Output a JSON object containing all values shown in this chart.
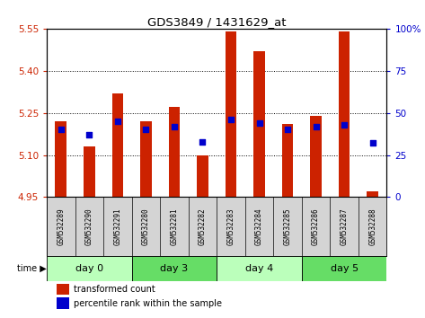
{
  "title": "GDS3849 / 1431629_at",
  "samples": [
    "GSM532289",
    "GSM532290",
    "GSM532291",
    "GSM532280",
    "GSM532281",
    "GSM532282",
    "GSM532283",
    "GSM532284",
    "GSM532285",
    "GSM532286",
    "GSM532287",
    "GSM532288"
  ],
  "red_values": [
    5.22,
    5.13,
    5.32,
    5.22,
    5.27,
    5.1,
    5.54,
    5.47,
    5.21,
    5.24,
    5.54,
    4.97
  ],
  "blue_values": [
    40,
    37,
    45,
    40,
    42,
    33,
    46,
    44,
    40,
    42,
    43,
    32
  ],
  "ylim_left": [
    4.95,
    5.55
  ],
  "ylim_right": [
    0,
    100
  ],
  "yticks_left": [
    4.95,
    5.1,
    5.25,
    5.4,
    5.55
  ],
  "yticks_right": [
    0,
    25,
    50,
    75,
    100
  ],
  "bar_color": "#cc2200",
  "dot_color": "#0000cc",
  "base": 4.95,
  "groups": [
    {
      "label": "day 0",
      "indices": [
        0,
        1,
        2
      ],
      "color": "#bbffbb"
    },
    {
      "label": "day 3",
      "indices": [
        3,
        4,
        5
      ],
      "color": "#66dd66"
    },
    {
      "label": "day 4",
      "indices": [
        6,
        7,
        8
      ],
      "color": "#bbffbb"
    },
    {
      "label": "day 5",
      "indices": [
        9,
        10,
        11
      ],
      "color": "#66dd66"
    }
  ],
  "tick_label_color_left": "#cc2200",
  "tick_label_color_right": "#0000cc",
  "bar_width": 0.4,
  "dot_size": 18
}
